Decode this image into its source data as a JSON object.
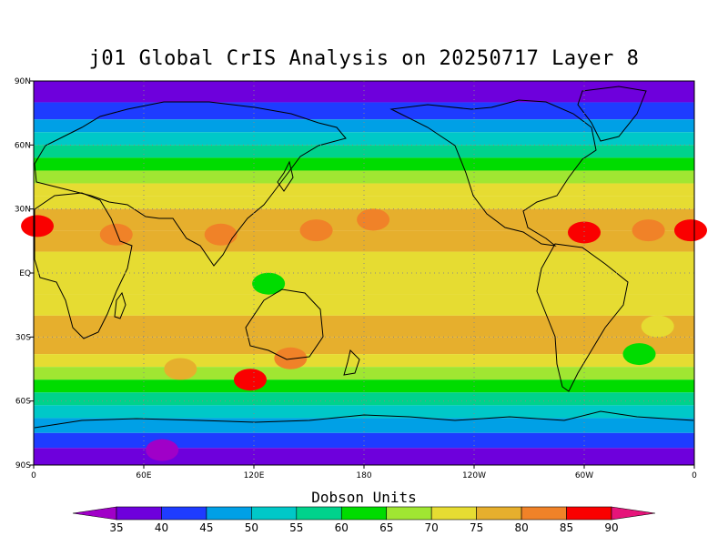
{
  "chart_data": {
    "type": "heatmap",
    "title": "j01 Global CrIS Analysis on 20250717 Layer 8",
    "colorbar_title": "Dobson Units",
    "x_ticks": [
      "0",
      "60E",
      "120E",
      "180",
      "120W",
      "60W",
      "0"
    ],
    "x_tick_lons": [
      0,
      60,
      120,
      180,
      240,
      300,
      360
    ],
    "y_ticks": [
      "90N",
      "60N",
      "30N",
      "EQ",
      "30S",
      "60S",
      "90S"
    ],
    "y_tick_lats": [
      90,
      60,
      30,
      0,
      -30,
      -60,
      -90
    ],
    "xlim": [
      0,
      360
    ],
    "ylim": [
      -90,
      90
    ],
    "grid": true,
    "legend_position": "bottom",
    "colorbar_levels": [
      35,
      40,
      45,
      50,
      55,
      60,
      65,
      70,
      75,
      80,
      85,
      90
    ],
    "colorbar_colors": [
      "#a000c8",
      "#6e00dc",
      "#1e3cff",
      "#00a0e6",
      "#00c8c8",
      "#00d28c",
      "#00dc00",
      "#a0e632",
      "#e6dc32",
      "#e6af2d",
      "#f08228",
      "#fa0000",
      "#e6147a"
    ],
    "zonal_profile": {
      "lat": [
        90,
        80,
        72,
        66,
        60,
        54,
        48,
        42,
        36,
        30,
        20,
        10,
        0,
        -10,
        -20,
        -30,
        -38,
        -44,
        -50,
        -56,
        -62,
        -68,
        -75,
        -82,
        -90
      ],
      "value": [
        37.5,
        42.5,
        47.5,
        52.5,
        57.5,
        62.5,
        67.5,
        72.5,
        72.5,
        77.5,
        77.5,
        72.5,
        72.5,
        72.5,
        77.5,
        77.5,
        72.5,
        67.5,
        62.5,
        57.5,
        52.5,
        47.5,
        42.5,
        37.5,
        37.5
      ]
    },
    "anomalies": [
      {
        "lon": 2,
        "lat": 22,
        "value": 87.5
      },
      {
        "lon": 358,
        "lat": 20,
        "value": 87.5
      },
      {
        "lon": 45,
        "lat": 18,
        "value": 82.5
      },
      {
        "lon": 102,
        "lat": 18,
        "value": 82.5
      },
      {
        "lon": 154,
        "lat": 20,
        "value": 82.5
      },
      {
        "lon": 185,
        "lat": 25,
        "value": 82.5
      },
      {
        "lon": 300,
        "lat": 19,
        "value": 87.5
      },
      {
        "lon": 335,
        "lat": 20,
        "value": 82.5
      },
      {
        "lon": 118,
        "lat": -50,
        "value": 87.5
      },
      {
        "lon": 140,
        "lat": -40,
        "value": 82.5
      },
      {
        "lon": 80,
        "lat": -45,
        "value": 77.5
      },
      {
        "lon": 128,
        "lat": -5,
        "value": 62.5
      },
      {
        "lon": 340,
        "lat": -25,
        "value": 72.5
      },
      {
        "lon": 330,
        "lat": -38,
        "value": 62.5
      },
      {
        "lon": 70,
        "lat": -83,
        "value": 32.5
      }
    ]
  }
}
